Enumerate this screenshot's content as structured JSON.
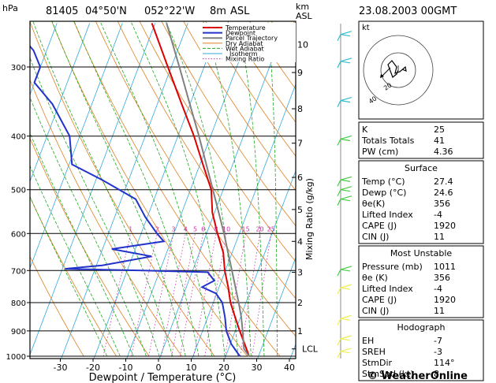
{
  "header": {
    "station": "81405",
    "lat": "04°50'N",
    "lon": "052°22'W",
    "elev": "8m",
    "elev_unit": "ASL",
    "datetime": "23.08.2003 00GMT"
  },
  "chart_data": {
    "type": "line",
    "title": "81405 04°50'N 052°22'W 8m ASL",
    "pressure_axis_label": "hPa",
    "height_axis_label": "km\nASL",
    "xlabel": "Dewpoint / Temperature (°C)",
    "mixing_axis_label": "Mixing Ratio (g/kg)",
    "xlim": [
      -35,
      40
    ],
    "pressure_range": [
      250,
      1000
    ],
    "x_ticks": [
      -30,
      -20,
      -10,
      0,
      10,
      20,
      30,
      40
    ],
    "pressure_ticks": [
      300,
      400,
      500,
      600,
      700,
      800,
      900,
      1000
    ],
    "km_ticks": [
      {
        "label": "10",
        "p": 273
      },
      {
        "label": "9",
        "p": 307
      },
      {
        "label": "8",
        "p": 357
      },
      {
        "label": "7",
        "p": 412
      },
      {
        "label": "6",
        "p": 475
      },
      {
        "label": "5",
        "p": 543
      },
      {
        "label": "4",
        "p": 620
      },
      {
        "label": "3",
        "p": 705
      },
      {
        "label": "2",
        "p": 800
      },
      {
        "label": "1",
        "p": 900
      },
      {
        "label": "LCL",
        "p": 970
      }
    ],
    "mixing_ratio_labels": [
      "1",
      "2",
      "3",
      "4",
      "5",
      "6",
      "8",
      "10",
      "15",
      "20",
      "25"
    ],
    "legend": [
      "Temperature",
      "Dewpoint",
      "Parcel Trajectory",
      "Dry Adiabat",
      "Wet Adiabat",
      "Isotherm",
      "Mixing Ratio"
    ],
    "colors": {
      "temperature": "#dd0000",
      "dewpoint": "#2233cc",
      "parcel": "#808080",
      "dry_adiabat": "#e08020",
      "wet_adiabat": "#22aa22",
      "isotherm": "#33aadd",
      "mixing_ratio": "#cc33aa",
      "wind_low": "#eeee55",
      "wind_mid": "#44cc44",
      "wind_high": "#33bbcc"
    },
    "series": [
      {
        "name": "Temperature",
        "points": [
          [
            1000,
            27.4
          ],
          [
            950,
            24.6
          ],
          [
            900,
            21.6
          ],
          [
            850,
            18.6
          ],
          [
            800,
            15.5
          ],
          [
            750,
            13.0
          ],
          [
            700,
            10.0
          ],
          [
            650,
            7.5
          ],
          [
            600,
            3.5
          ],
          [
            550,
            -0.5
          ],
          [
            500,
            -3.5
          ],
          [
            450,
            -9.0
          ],
          [
            400,
            -15.0
          ],
          [
            350,
            -22.5
          ],
          [
            300,
            -31.0
          ],
          [
            250,
            -41.0
          ]
        ]
      },
      {
        "name": "Dewpoint",
        "points": [
          [
            1000,
            24.6
          ],
          [
            950,
            20.5
          ],
          [
            900,
            17.5
          ],
          [
            850,
            15.5
          ],
          [
            800,
            13.0
          ],
          [
            770,
            10.0
          ],
          [
            750,
            5.0
          ],
          [
            730,
            8.0
          ],
          [
            705,
            5.0
          ],
          [
            700,
            -15.0
          ],
          [
            695,
            -39.0
          ],
          [
            685,
            -28.0
          ],
          [
            660,
            -14.0
          ],
          [
            640,
            -27.0
          ],
          [
            620,
            -12.0
          ],
          [
            600,
            -15.0
          ],
          [
            560,
            -20.5
          ],
          [
            520,
            -25.5
          ],
          [
            480,
            -38.0
          ],
          [
            450,
            -49.0
          ],
          [
            400,
            -53.0
          ],
          [
            350,
            -62.0
          ],
          [
            320,
            -70.0
          ],
          [
            300,
            -70.0
          ],
          [
            280,
            -74.0
          ],
          [
            265,
            -79.0
          ]
        ]
      },
      {
        "name": "Parcel Trajectory",
        "points": [
          [
            1000,
            27.4
          ],
          [
            970,
            25.0
          ],
          [
            900,
            22.5
          ],
          [
            850,
            20.5
          ],
          [
            800,
            18.0
          ],
          [
            700,
            12.2
          ],
          [
            600,
            5.5
          ],
          [
            500,
            -3.0
          ],
          [
            400,
            -13.5
          ],
          [
            350,
            -20.0
          ],
          [
            300,
            -27.5
          ],
          [
            250,
            -36.5
          ]
        ]
      }
    ]
  },
  "hodograph": {
    "label": "kt",
    "rings": [
      "20",
      "40"
    ]
  },
  "indices": {
    "top": [
      {
        "label": "K",
        "value": "25"
      },
      {
        "label": "Totals Totals",
        "value": "41"
      },
      {
        "label": "PW (cm)",
        "value": "4.36"
      }
    ],
    "surface": {
      "title": "Surface",
      "rows": [
        {
          "label": "Temp (°C)",
          "value": "27.4"
        },
        {
          "label": "Dewp (°C)",
          "value": "24.6"
        },
        {
          "label": "θe(K)",
          "value": "356"
        },
        {
          "label": "Lifted Index",
          "value": "-4"
        },
        {
          "label": "CAPE (J)",
          "value": "1920"
        },
        {
          "label": "CIN (J)",
          "value": "11"
        }
      ]
    },
    "most_unstable": {
      "title": "Most Unstable",
      "rows": [
        {
          "label": "Pressure (mb)",
          "value": "1011"
        },
        {
          "label": "θe (K)",
          "value": "356"
        },
        {
          "label": "Lifted Index",
          "value": "-4"
        },
        {
          "label": "CAPE (J)",
          "value": "1920"
        },
        {
          "label": "CIN (J)",
          "value": "11"
        }
      ]
    },
    "hodograph_table": {
      "title": "Hodograph",
      "rows": [
        {
          "label": "EH",
          "value": "-7"
        },
        {
          "label": "SREH",
          "value": "-3"
        },
        {
          "label": "StmDir",
          "value": "114°"
        },
        {
          "label": "StmSpd (kt)",
          "value": "8"
        }
      ]
    }
  },
  "copyright": "© WeatherOnline"
}
